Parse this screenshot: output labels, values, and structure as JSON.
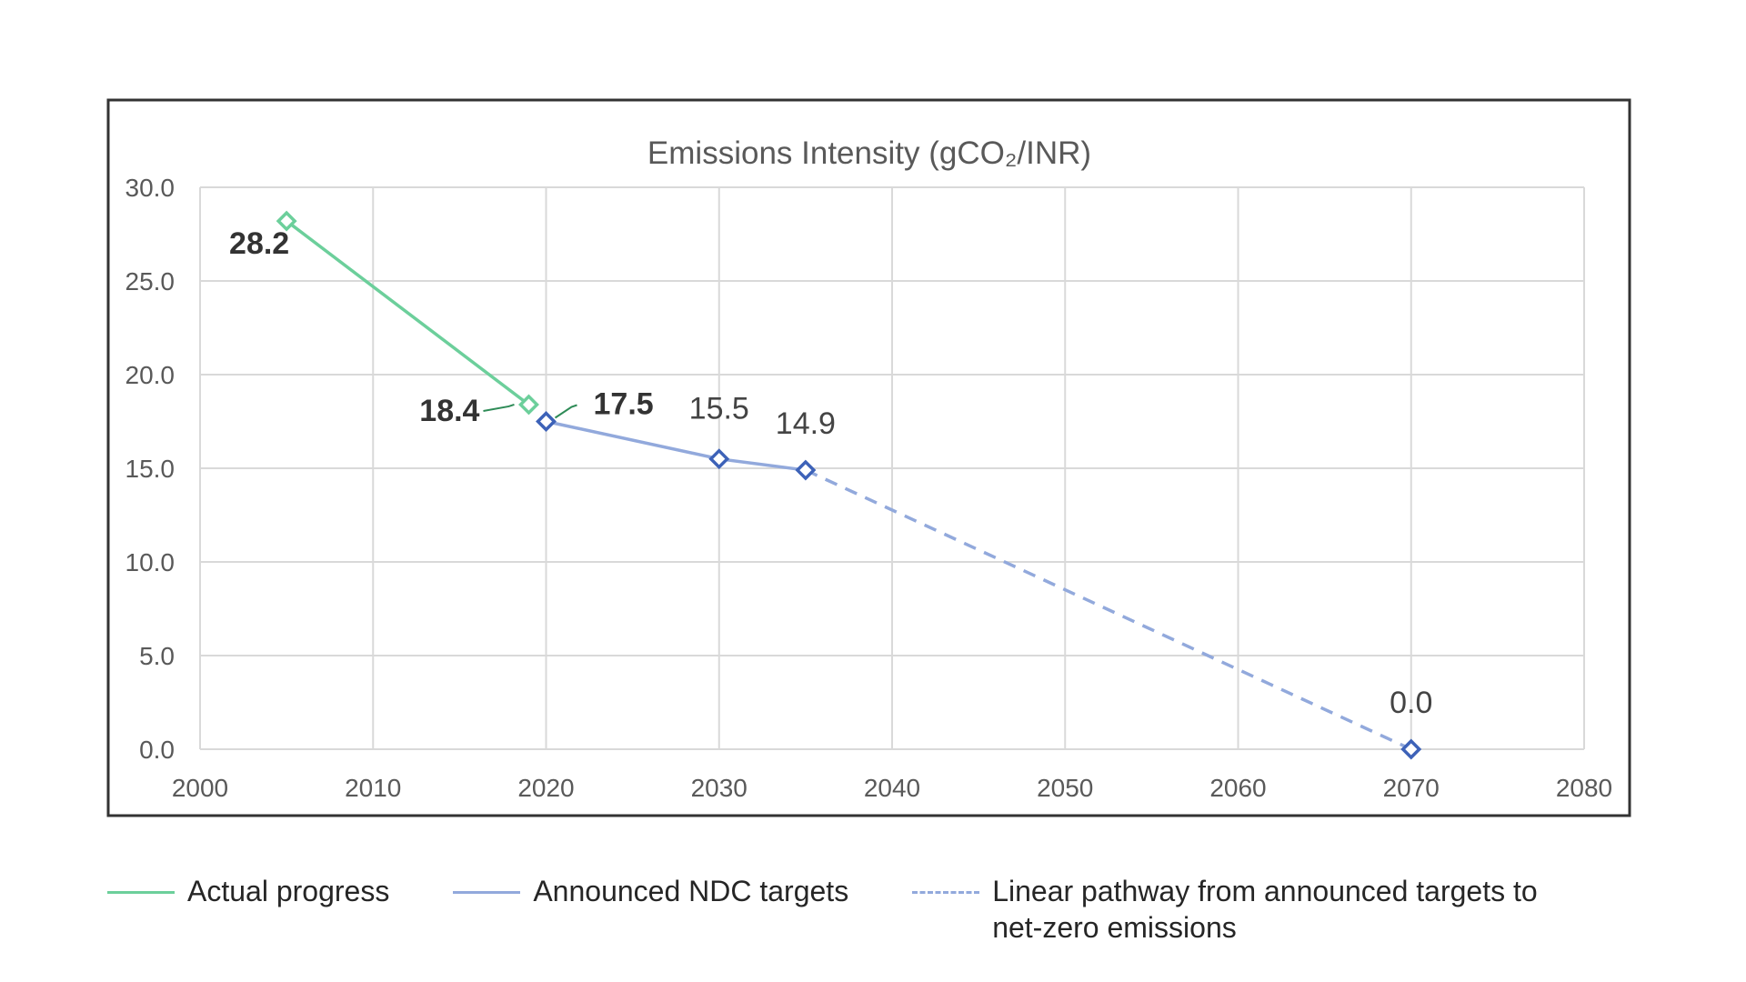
{
  "chart_data": {
    "type": "line",
    "title": "Emissions Intensity (gCO₂/INR)",
    "xlabel": "",
    "ylabel": "",
    "xlim": [
      2000,
      2080
    ],
    "ylim": [
      0,
      30
    ],
    "x_ticks": [
      "2000",
      "2010",
      "2020",
      "2030",
      "2040",
      "2050",
      "2060",
      "2070",
      "2080"
    ],
    "y_ticks": [
      "30.0",
      "25.0",
      "20.0",
      "15.0",
      "10.0",
      "5.0",
      "0.0"
    ],
    "grid": true,
    "legend_position": "bottom",
    "series": [
      {
        "name": "Actual progress",
        "color": "#6ccf9b",
        "style": "solid",
        "marker": "diamond-open",
        "x": [
          2005,
          2019
        ],
        "values": [
          28.2,
          18.4
        ],
        "labels": [
          "28.2",
          "18.4"
        ]
      },
      {
        "name": "Announced NDC targets",
        "color": "#92a9dc",
        "marker_color": "#3d62b8",
        "style": "solid",
        "marker": "diamond-open",
        "x": [
          2020,
          2030,
          2035
        ],
        "values": [
          17.5,
          15.5,
          14.9
        ],
        "labels": [
          "17.5",
          "15.5",
          "14.9"
        ]
      },
      {
        "name": "Linear pathway from announced targets to net-zero emissions",
        "color": "#92a9dc",
        "marker_color": "#3d62b8",
        "style": "dashed",
        "marker": "diamond-open",
        "x": [
          2035,
          2070
        ],
        "values": [
          14.9,
          0.0
        ],
        "labels": [
          "",
          "0.0"
        ]
      }
    ]
  },
  "legend": {
    "items": [
      {
        "label": "Actual progress",
        "color": "#6ccf9b",
        "style": "solid"
      },
      {
        "label": "Announced NDC targets",
        "color": "#92a9dc",
        "style": "solid"
      },
      {
        "label": "Linear pathway from announced targets to net-zero emissions",
        "color": "#92a9dc",
        "style": "dashed"
      }
    ]
  }
}
